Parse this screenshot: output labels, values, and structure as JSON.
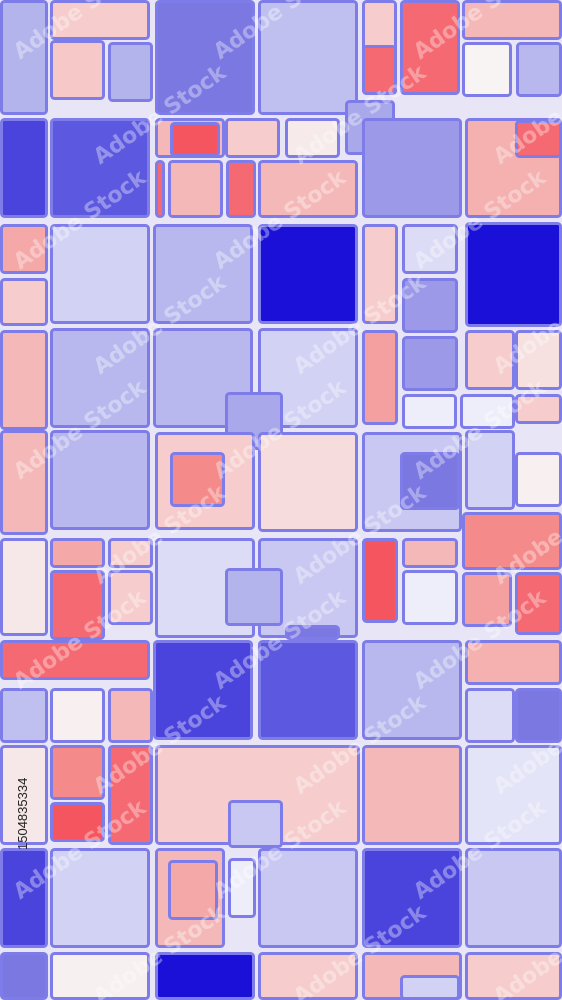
{
  "watermark": "Adobe Stock",
  "image_id": "1504835334"
}
